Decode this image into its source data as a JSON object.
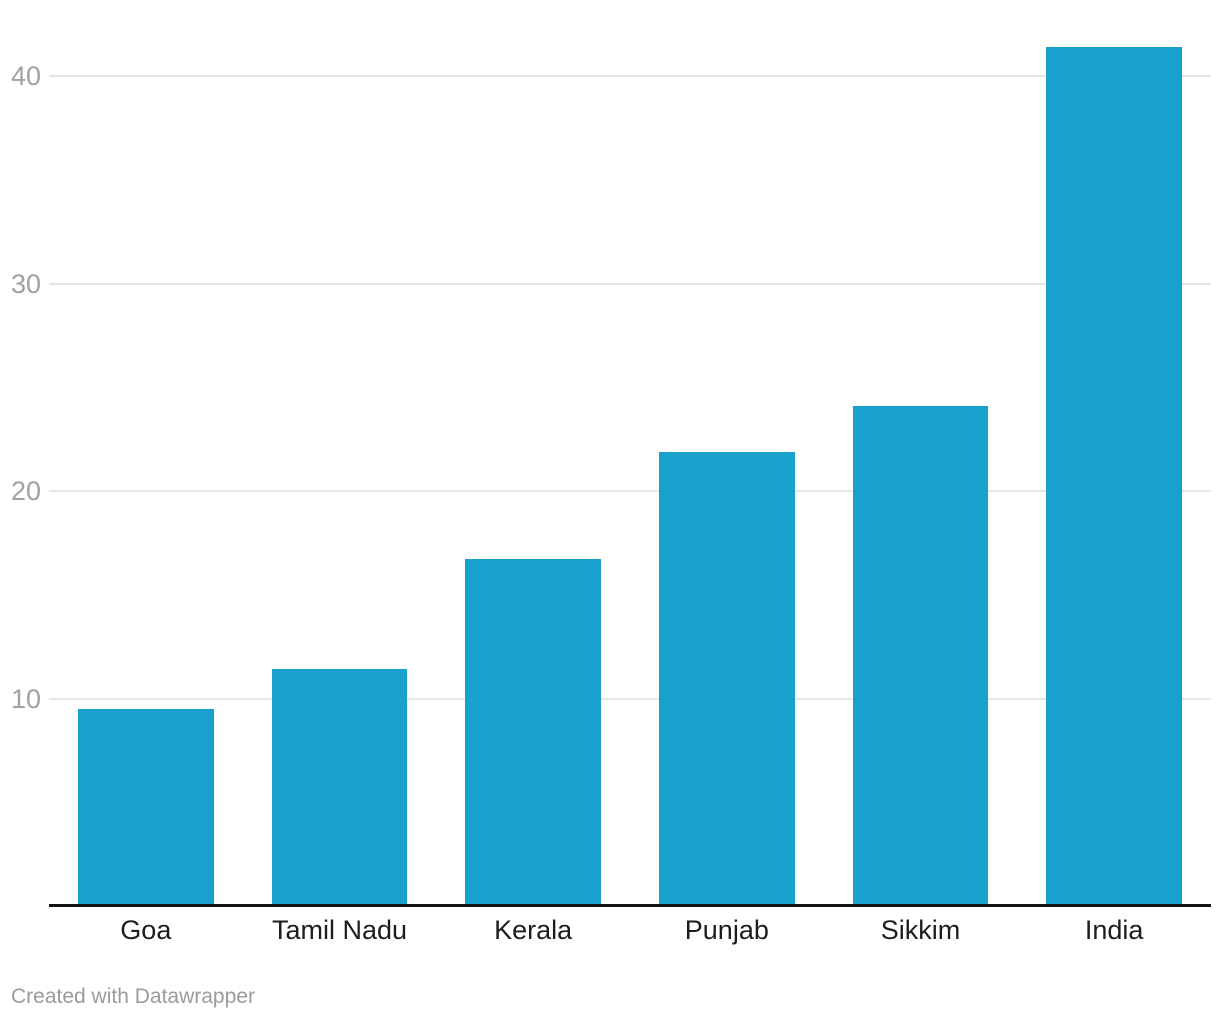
{
  "chart_data": {
    "type": "bar",
    "categories": [
      "Goa",
      "Tamil Nadu",
      "Kerala",
      "Punjab",
      "Sikkim",
      "India"
    ],
    "values": [
      9.5,
      11.4,
      16.7,
      21.9,
      24.1,
      41.4
    ],
    "title": "",
    "xlabel": "",
    "ylabel": "",
    "ylim": [
      0,
      40
    ],
    "yticks": [
      10,
      20,
      30,
      40
    ],
    "grid": true,
    "legend": "none",
    "bar_color": "#18a1cd"
  },
  "colors": {
    "bar": "#18a1cd",
    "gridline": "#e6e6e6",
    "axis_line": "#131313",
    "tick_label": "#a1a1a1",
    "category_label": "#1d1d1d",
    "credit_text": "#9b9b9b",
    "background": "#ffffff"
  },
  "footer": {
    "credit": "Created with Datawrapper"
  }
}
